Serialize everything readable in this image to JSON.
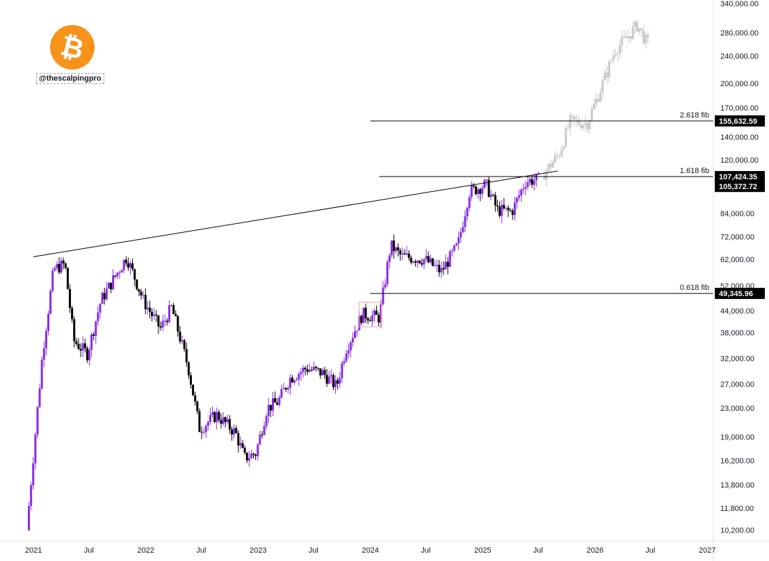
{
  "watermark": {
    "handle": "@thescalpingpro",
    "logo": "bitcoin-logo"
  },
  "colors": {
    "bull": "#8a2be2",
    "bear": "#000000",
    "projection": "#c8c8c8",
    "line": "#000000",
    "badge_bg": "#000000",
    "grid_border": "#e0e3eb"
  },
  "chart_data": {
    "type": "candlestick",
    "title": "",
    "scale": "log",
    "ylim": [
      9500,
      345000
    ],
    "x_ticks": [
      "2021",
      "Jul",
      "2022",
      "Jul",
      "2023",
      "Jul",
      "2024",
      "Jul",
      "2025",
      "Jul",
      "2026",
      "Jul",
      "2027"
    ],
    "y_ticks": [
      "340,000.00",
      "280,000.00",
      "240,000.00",
      "200,000.00",
      "170,000.00",
      "140,000.00",
      "120,000.00",
      "84,000.00",
      "72,000.00",
      "62,000.00",
      "52,000.00",
      "44,000.00",
      "38,000.00",
      "32,000.00",
      "27,000.00",
      "23,000.00",
      "19,000.00",
      "16,200.00",
      "13,800.00",
      "11,800.00",
      "10,200.00"
    ],
    "y_tick_values": [
      340000,
      280000,
      240000,
      200000,
      170000,
      140000,
      120000,
      84000,
      72000,
      62000,
      52000,
      44000,
      38000,
      32000,
      27000,
      23000,
      19000,
      16200,
      13800,
      11800,
      10200
    ],
    "price_badges": [
      "155,632.59",
      "107,424.35",
      "105,372.72",
      "49,345.96"
    ],
    "price_badge_values": [
      155632.59,
      107424.35,
      105372.72,
      49345.96
    ],
    "fib_levels": [
      {
        "label": "2.618 fib",
        "price": 155632.59,
        "start": 2024.0
      },
      {
        "label": "1.618 fib",
        "price": 107424.35,
        "start": 2024.08
      },
      {
        "label": "0.618 fib",
        "price": 49345.96,
        "start": 2024.0
      }
    ],
    "trendline": {
      "x": [
        2021.0,
        2025.67
      ],
      "y": [
        63000,
        111500
      ]
    },
    "highlight_box": {
      "x": [
        2023.9,
        2024.1
      ],
      "y": [
        39500,
        46500
      ]
    },
    "path_points": [
      {
        "t": 2020.96,
        "p": 10200
      },
      {
        "t": 2021.1,
        "p": 33000
      },
      {
        "t": 2021.2,
        "p": 58000
      },
      {
        "t": 2021.3,
        "p": 60000
      },
      {
        "t": 2021.38,
        "p": 36000
      },
      {
        "t": 2021.5,
        "p": 33000
      },
      {
        "t": 2021.62,
        "p": 47000
      },
      {
        "t": 2021.85,
        "p": 63000
      },
      {
        "t": 2022.0,
        "p": 47000
      },
      {
        "t": 2022.15,
        "p": 39000
      },
      {
        "t": 2022.25,
        "p": 45000
      },
      {
        "t": 2022.4,
        "p": 30000
      },
      {
        "t": 2022.5,
        "p": 20000
      },
      {
        "t": 2022.65,
        "p": 22000
      },
      {
        "t": 2022.82,
        "p": 19500
      },
      {
        "t": 2022.9,
        "p": 16500
      },
      {
        "t": 2023.0,
        "p": 17000
      },
      {
        "t": 2023.1,
        "p": 23000
      },
      {
        "t": 2023.2,
        "p": 24000
      },
      {
        "t": 2023.3,
        "p": 28000
      },
      {
        "t": 2023.45,
        "p": 30000
      },
      {
        "t": 2023.6,
        "p": 29000
      },
      {
        "t": 2023.72,
        "p": 26500
      },
      {
        "t": 2023.8,
        "p": 34000
      },
      {
        "t": 2023.95,
        "p": 43000
      },
      {
        "t": 2024.1,
        "p": 42000
      },
      {
        "t": 2024.2,
        "p": 68000
      },
      {
        "t": 2024.3,
        "p": 63000
      },
      {
        "t": 2024.5,
        "p": 62000
      },
      {
        "t": 2024.65,
        "p": 57000
      },
      {
        "t": 2024.8,
        "p": 68000
      },
      {
        "t": 2024.9,
        "p": 97000
      },
      {
        "t": 2025.05,
        "p": 102000
      },
      {
        "t": 2025.15,
        "p": 86000
      },
      {
        "t": 2025.28,
        "p": 85000
      },
      {
        "t": 2025.4,
        "p": 104000
      },
      {
        "t": 2025.5,
        "p": 105400
      }
    ],
    "projection_points": [
      {
        "t": 2025.55,
        "p": 108000
      },
      {
        "t": 2025.7,
        "p": 125000
      },
      {
        "t": 2025.8,
        "p": 155000
      },
      {
        "t": 2025.95,
        "p": 153000
      },
      {
        "t": 2026.05,
        "p": 185000
      },
      {
        "t": 2026.2,
        "p": 250000
      },
      {
        "t": 2026.3,
        "p": 270000
      },
      {
        "t": 2026.4,
        "p": 295000
      },
      {
        "t": 2026.48,
        "p": 262000
      }
    ]
  }
}
